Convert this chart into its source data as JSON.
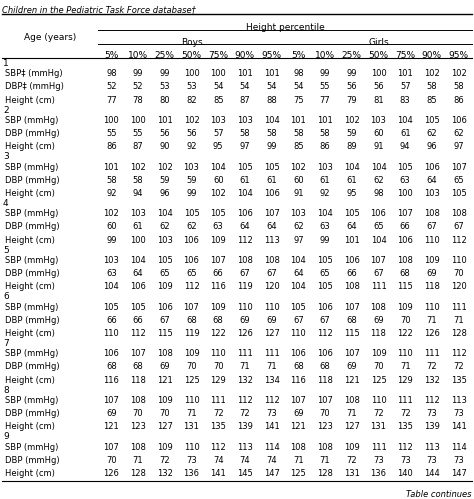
{
  "title_line": "Children in the Pediatric Task Force database†",
  "age_col_header": "Age (years)",
  "boys_header": "Boys",
  "girls_header": "Girls",
  "hp_header": "Height percentile",
  "percentile_cols": [
    "5%",
    "10%",
    "25%",
    "50%",
    "75%",
    "90%",
    "95%"
  ],
  "rows": [
    {
      "age": "1",
      "label": null,
      "boys": [],
      "girls": []
    },
    {
      "age": null,
      "label": "SBP‡ (mmHg)",
      "boys": [
        98,
        99,
        99,
        100,
        100,
        101,
        101
      ],
      "girls": [
        98,
        99,
        99,
        100,
        101,
        102,
        102
      ]
    },
    {
      "age": null,
      "label": "DBP‡ (mmHg)",
      "boys": [
        52,
        52,
        53,
        53,
        54,
        54,
        54
      ],
      "girls": [
        54,
        55,
        56,
        56,
        57,
        58,
        58
      ]
    },
    {
      "age": null,
      "label": "Height (cm)",
      "boys": [
        77,
        78,
        80,
        82,
        85,
        87,
        88
      ],
      "girls": [
        75,
        77,
        79,
        81,
        83,
        85,
        86
      ]
    },
    {
      "age": "2",
      "label": null,
      "boys": [],
      "girls": []
    },
    {
      "age": null,
      "label": "SBP (mmHg)",
      "boys": [
        100,
        100,
        101,
        102,
        103,
        103,
        104
      ],
      "girls": [
        101,
        101,
        102,
        103,
        104,
        105,
        106
      ]
    },
    {
      "age": null,
      "label": "DBP (mmHg)",
      "boys": [
        55,
        55,
        56,
        56,
        57,
        58,
        58
      ],
      "girls": [
        58,
        58,
        59,
        60,
        61,
        62,
        62
      ]
    },
    {
      "age": null,
      "label": "Height (cm)",
      "boys": [
        86,
        87,
        90,
        92,
        95,
        97,
        99
      ],
      "girls": [
        85,
        86,
        89,
        91,
        94,
        96,
        97
      ]
    },
    {
      "age": "3",
      "label": null,
      "boys": [],
      "girls": []
    },
    {
      "age": null,
      "label": "SBP (mmHg)",
      "boys": [
        101,
        102,
        102,
        103,
        104,
        105,
        105
      ],
      "girls": [
        102,
        103,
        104,
        104,
        105,
        106,
        107
      ]
    },
    {
      "age": null,
      "label": "DBP (mmHg)",
      "boys": [
        58,
        58,
        59,
        59,
        60,
        61,
        61
      ],
      "girls": [
        60,
        61,
        61,
        62,
        63,
        64,
        65
      ]
    },
    {
      "age": null,
      "label": "Height (cm)",
      "boys": [
        92,
        94,
        96,
        99,
        102,
        104,
        106
      ],
      "girls": [
        91,
        92,
        95,
        98,
        100,
        103,
        105
      ]
    },
    {
      "age": "4",
      "label": null,
      "boys": [],
      "girls": []
    },
    {
      "age": null,
      "label": "SBP (mmHg)",
      "boys": [
        102,
        103,
        104,
        105,
        105,
        106,
        107
      ],
      "girls": [
        103,
        104,
        105,
        106,
        107,
        108,
        108
      ]
    },
    {
      "age": null,
      "label": "DBP (mmHg)",
      "boys": [
        60,
        61,
        62,
        62,
        63,
        64,
        64
      ],
      "girls": [
        62,
        63,
        64,
        65,
        66,
        67,
        67
      ]
    },
    {
      "age": null,
      "label": "Height (cm)",
      "boys": [
        99,
        100,
        103,
        106,
        109,
        112,
        113
      ],
      "girls": [
        97,
        99,
        101,
        104,
        106,
        110,
        112
      ]
    },
    {
      "age": "5",
      "label": null,
      "boys": [],
      "girls": []
    },
    {
      "age": null,
      "label": "SBP (mmHg)",
      "boys": [
        103,
        104,
        105,
        106,
        107,
        108,
        108
      ],
      "girls": [
        104,
        105,
        106,
        107,
        108,
        109,
        110
      ]
    },
    {
      "age": null,
      "label": "DBP (mmHg)",
      "boys": [
        63,
        64,
        65,
        65,
        66,
        67,
        67
      ],
      "girls": [
        64,
        65,
        66,
        67,
        68,
        69,
        70
      ]
    },
    {
      "age": null,
      "label": "Height (cm)",
      "boys": [
        104,
        106,
        109,
        112,
        116,
        119,
        120
      ],
      "girls": [
        104,
        105,
        108,
        111,
        115,
        118,
        120
      ]
    },
    {
      "age": "6",
      "label": null,
      "boys": [],
      "girls": []
    },
    {
      "age": null,
      "label": "SBP (mmHg)",
      "boys": [
        105,
        105,
        106,
        107,
        109,
        110,
        110
      ],
      "girls": [
        105,
        106,
        107,
        108,
        109,
        110,
        111
      ]
    },
    {
      "age": null,
      "label": "DBP (mmHg)",
      "boys": [
        66,
        66,
        67,
        68,
        68,
        69,
        69
      ],
      "girls": [
        67,
        67,
        68,
        69,
        70,
        71,
        71
      ]
    },
    {
      "age": null,
      "label": "Height (cm)",
      "boys": [
        110,
        112,
        115,
        119,
        122,
        126,
        127
      ],
      "girls": [
        110,
        112,
        115,
        118,
        122,
        126,
        128
      ]
    },
    {
      "age": "7",
      "label": null,
      "boys": [],
      "girls": []
    },
    {
      "age": null,
      "label": "SBP (mmHg)",
      "boys": [
        106,
        107,
        108,
        109,
        110,
        111,
        111
      ],
      "girls": [
        106,
        106,
        107,
        109,
        110,
        111,
        112
      ]
    },
    {
      "age": null,
      "label": "DBP (mmHg)",
      "boys": [
        68,
        68,
        69,
        70,
        70,
        71,
        71
      ],
      "girls": [
        68,
        68,
        69,
        70,
        71,
        72,
        72
      ]
    },
    {
      "age": null,
      "label": "Height (cm)",
      "boys": [
        116,
        118,
        121,
        125,
        129,
        132,
        134
      ],
      "girls": [
        116,
        118,
        121,
        125,
        129,
        132,
        135
      ]
    },
    {
      "age": "8",
      "label": null,
      "boys": [],
      "girls": []
    },
    {
      "age": null,
      "label": "SBP (mmHg)",
      "boys": [
        107,
        108,
        109,
        110,
        111,
        112,
        112
      ],
      "girls": [
        107,
        107,
        108,
        110,
        111,
        112,
        113
      ]
    },
    {
      "age": null,
      "label": "DBP (mmHg)",
      "boys": [
        69,
        70,
        70,
        71,
        72,
        72,
        73
      ],
      "girls": [
        69,
        70,
        71,
        72,
        72,
        73,
        73
      ]
    },
    {
      "age": null,
      "label": "Height (cm)",
      "boys": [
        121,
        123,
        127,
        131,
        135,
        139,
        141
      ],
      "girls": [
        121,
        123,
        127,
        131,
        135,
        139,
        141
      ]
    },
    {
      "age": "9",
      "label": null,
      "boys": [],
      "girls": []
    },
    {
      "age": null,
      "label": "SBP (mmHg)",
      "boys": [
        107,
        108,
        109,
        110,
        112,
        113,
        114
      ],
      "girls": [
        108,
        108,
        109,
        111,
        112,
        113,
        114
      ]
    },
    {
      "age": null,
      "label": "DBP (mmHg)",
      "boys": [
        70,
        71,
        72,
        73,
        74,
        74,
        74
      ],
      "girls": [
        71,
        71,
        72,
        73,
        73,
        73,
        73
      ]
    },
    {
      "age": null,
      "label": "Height (cm)",
      "boys": [
        126,
        128,
        132,
        136,
        141,
        145,
        147
      ],
      "girls": [
        125,
        128,
        131,
        136,
        140,
        144,
        147
      ]
    }
  ],
  "footer": "Table continues",
  "bg_color": "#ffffff",
  "font_size": 6.5
}
